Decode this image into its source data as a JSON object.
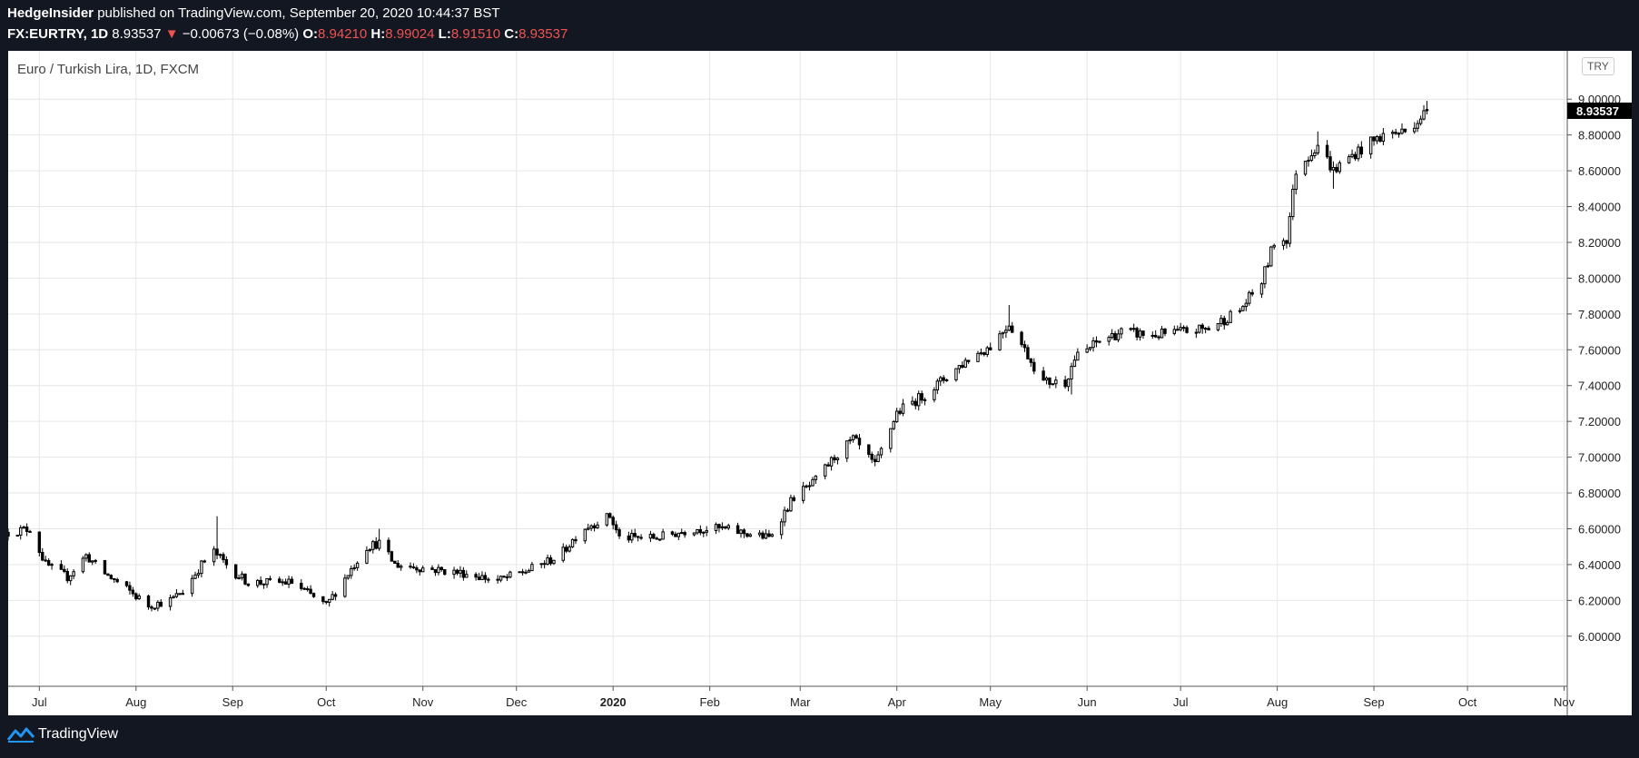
{
  "header": {
    "author": "HedgeInsider",
    "published_text": "published on TradingView.com, September 20, 2020 10:44:37 BST",
    "symbol": "FX:EURTRY, 1D",
    "last": "8.93537",
    "change": "−0.00673 (−0.08%)",
    "o_label": "O:",
    "o_value": "8.94210",
    "h_label": "H:",
    "h_value": "8.99024",
    "l_label": "L:",
    "l_value": "8.91510",
    "c_label": "C:",
    "c_value": "8.93537"
  },
  "colors": {
    "background": "#131722",
    "down": "#ef5350",
    "candle": "#000000",
    "grid": "#e6e6e6"
  },
  "chart_data": {
    "type": "candlestick",
    "title": "Euro / Turkish Lira, 1D, FXCM",
    "currency": "TRY",
    "last_price_label": "8.93537",
    "ylim": [
      5.72,
      9.27
    ],
    "y_ticks": [
      6.0,
      6.2,
      6.4,
      6.6,
      6.8,
      7.0,
      7.2,
      7.4,
      7.6,
      7.8,
      8.0,
      8.2,
      8.4,
      8.6,
      8.8,
      9.0
    ],
    "y_tick_labels": [
      "6.00000",
      "6.20000",
      "6.40000",
      "6.60000",
      "6.80000",
      "7.00000",
      "7.20000",
      "7.40000",
      "7.60000",
      "7.80000",
      "8.00000",
      "8.20000",
      "8.40000",
      "8.60000",
      "8.80000",
      "9.00000"
    ],
    "x_range": [
      "2019-06-21",
      "2020-11-02"
    ],
    "x_ticks": [
      {
        "date": "2019-07-01",
        "label": "Jul"
      },
      {
        "date": "2019-08-01",
        "label": "Aug"
      },
      {
        "date": "2019-09-01",
        "label": "Sep"
      },
      {
        "date": "2019-10-01",
        "label": "Oct"
      },
      {
        "date": "2019-11-01",
        "label": "Nov"
      },
      {
        "date": "2019-12-01",
        "label": "Dec"
      },
      {
        "date": "2020-01-01",
        "label": "2020",
        "bold": true
      },
      {
        "date": "2020-02-01",
        "label": "Feb"
      },
      {
        "date": "2020-03-01",
        "label": "Mar"
      },
      {
        "date": "2020-04-01",
        "label": "Apr"
      },
      {
        "date": "2020-05-01",
        "label": "May"
      },
      {
        "date": "2020-06-01",
        "label": "Jun"
      },
      {
        "date": "2020-07-01",
        "label": "Jul"
      },
      {
        "date": "2020-08-01",
        "label": "Aug"
      },
      {
        "date": "2020-09-01",
        "label": "Sep"
      },
      {
        "date": "2020-10-01",
        "label": "Oct"
      },
      {
        "date": "2020-11-01",
        "label": "Nov"
      }
    ],
    "close_path": [
      {
        "date": "2019-06-21",
        "close": 6.58
      },
      {
        "date": "2019-06-28",
        "close": 6.6
      },
      {
        "date": "2019-07-03",
        "close": 6.4
      },
      {
        "date": "2019-07-10",
        "close": 6.33
      },
      {
        "date": "2019-07-16",
        "close": 6.45
      },
      {
        "date": "2019-07-22",
        "close": 6.35
      },
      {
        "date": "2019-07-30",
        "close": 6.25
      },
      {
        "date": "2019-08-05",
        "close": 6.17
      },
      {
        "date": "2019-08-12",
        "close": 6.2
      },
      {
        "date": "2019-08-16",
        "close": 6.25
      },
      {
        "date": "2019-08-22",
        "close": 6.4
      },
      {
        "date": "2019-08-26",
        "close": 6.47
      },
      {
        "date": "2019-09-02",
        "close": 6.35
      },
      {
        "date": "2019-09-06",
        "close": 6.3
      },
      {
        "date": "2019-09-13",
        "close": 6.3
      },
      {
        "date": "2019-09-20",
        "close": 6.3
      },
      {
        "date": "2019-10-01",
        "close": 6.17
      },
      {
        "date": "2019-10-08",
        "close": 6.35
      },
      {
        "date": "2019-10-14",
        "close": 6.5
      },
      {
        "date": "2019-10-18",
        "close": 6.52
      },
      {
        "date": "2019-10-23",
        "close": 6.4
      },
      {
        "date": "2019-11-01",
        "close": 6.38
      },
      {
        "date": "2019-11-15",
        "close": 6.35
      },
      {
        "date": "2019-11-25",
        "close": 6.31
      },
      {
        "date": "2019-12-05",
        "close": 6.37
      },
      {
        "date": "2019-12-15",
        "close": 6.45
      },
      {
        "date": "2019-12-22",
        "close": 6.6
      },
      {
        "date": "2019-12-31",
        "close": 6.67
      },
      {
        "date": "2020-01-03",
        "close": 6.55
      },
      {
        "date": "2020-01-15",
        "close": 6.55
      },
      {
        "date": "2020-01-27",
        "close": 6.6
      },
      {
        "date": "2020-02-05",
        "close": 6.6
      },
      {
        "date": "2020-02-20",
        "close": 6.55
      },
      {
        "date": "2020-02-28",
        "close": 6.78
      },
      {
        "date": "2020-03-05",
        "close": 6.85
      },
      {
        "date": "2020-03-12",
        "close": 7.0
      },
      {
        "date": "2020-03-18",
        "close": 7.1
      },
      {
        "date": "2020-03-25",
        "close": 6.95
      },
      {
        "date": "2020-04-01",
        "close": 7.25
      },
      {
        "date": "2020-04-10",
        "close": 7.35
      },
      {
        "date": "2020-04-17",
        "close": 7.45
      },
      {
        "date": "2020-04-24",
        "close": 7.55
      },
      {
        "date": "2020-05-01",
        "close": 7.62
      },
      {
        "date": "2020-05-07",
        "close": 7.75
      },
      {
        "date": "2020-05-12",
        "close": 7.6
      },
      {
        "date": "2020-05-18",
        "close": 7.42
      },
      {
        "date": "2020-05-25",
        "close": 7.42
      },
      {
        "date": "2020-05-28",
        "close": 7.55
      },
      {
        "date": "2020-06-05",
        "close": 7.65
      },
      {
        "date": "2020-06-12",
        "close": 7.7
      },
      {
        "date": "2020-06-22",
        "close": 7.68
      },
      {
        "date": "2020-07-01",
        "close": 7.7
      },
      {
        "date": "2020-07-10",
        "close": 7.72
      },
      {
        "date": "2020-07-20",
        "close": 7.82
      },
      {
        "date": "2020-07-27",
        "close": 7.98
      },
      {
        "date": "2020-07-31",
        "close": 8.2
      },
      {
        "date": "2020-08-04",
        "close": 8.22
      },
      {
        "date": "2020-08-07",
        "close": 8.6
      },
      {
        "date": "2020-08-14",
        "close": 8.75
      },
      {
        "date": "2020-08-19",
        "close": 8.6
      },
      {
        "date": "2020-08-26",
        "close": 8.7
      },
      {
        "date": "2020-09-04",
        "close": 8.8
      },
      {
        "date": "2020-09-11",
        "close": 8.82
      },
      {
        "date": "2020-09-18",
        "close": 8.93537
      }
    ],
    "last_candle": {
      "date": "2020-09-18",
      "open": 8.9421,
      "high": 8.99024,
      "low": 8.9151,
      "close": 8.93537
    },
    "annotated_extremes": [
      {
        "date": "2019-08-27",
        "high": 6.67
      },
      {
        "date": "2019-10-18",
        "high": 6.6
      },
      {
        "date": "2020-05-07",
        "high": 7.85
      },
      {
        "date": "2020-05-27",
        "low": 7.35
      },
      {
        "date": "2020-08-14",
        "high": 8.82
      },
      {
        "date": "2020-08-19",
        "low": 8.5
      }
    ]
  },
  "footer": {
    "brand": "TradingView"
  }
}
